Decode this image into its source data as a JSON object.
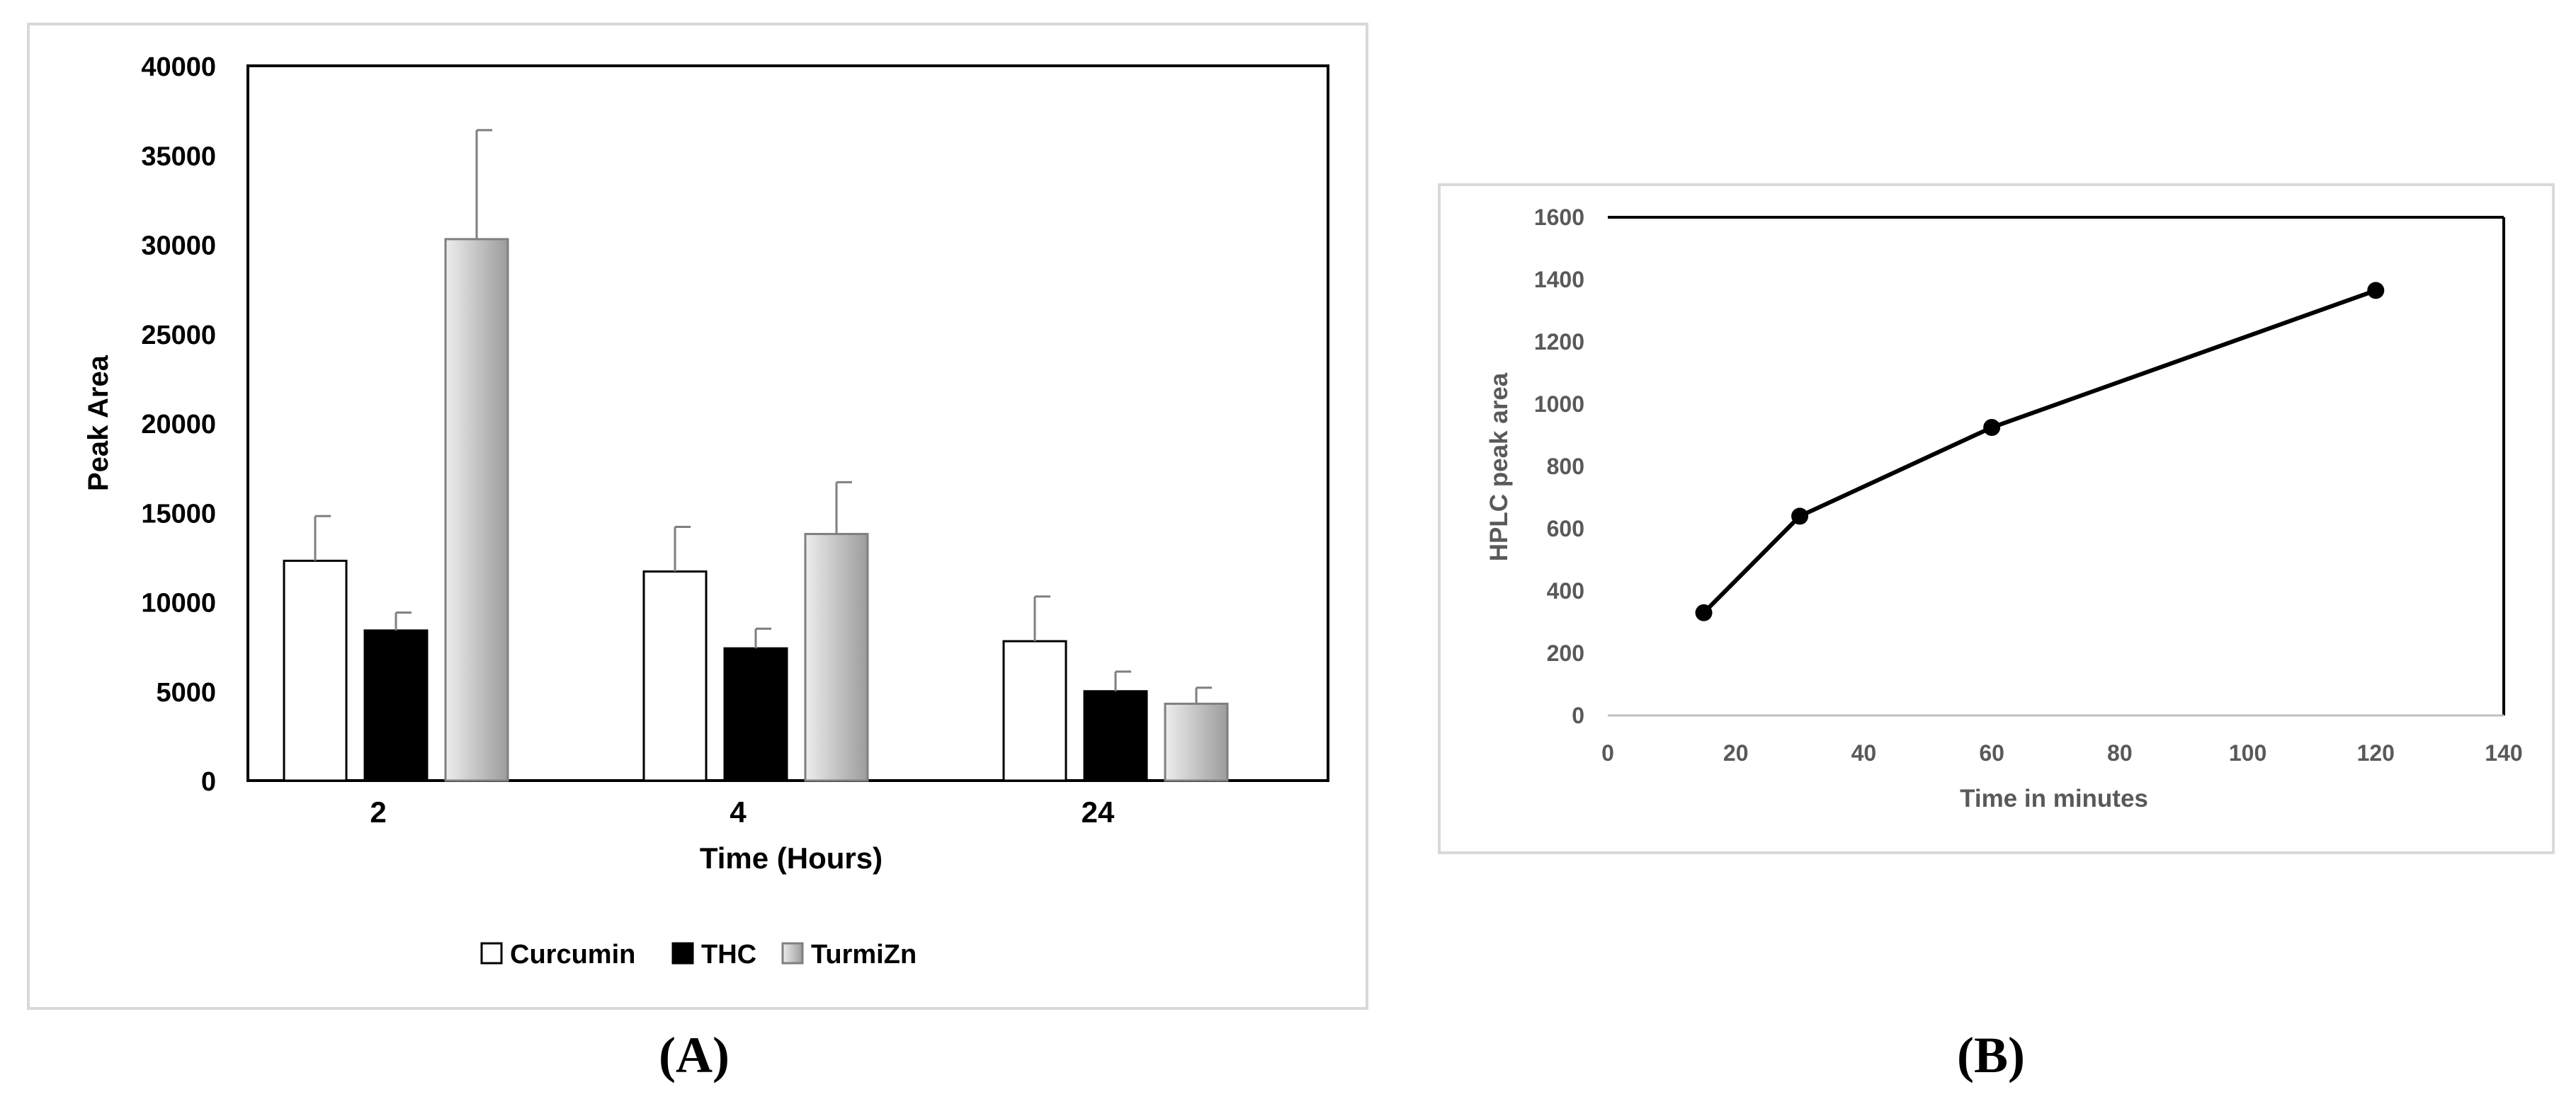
{
  "colors": {
    "background": "#ffffff",
    "panel_border": "#d9d9d9",
    "axis": "#000000",
    "bar_curcumin": "#ffffff",
    "bar_thc": "#000000",
    "bar_turmizn": "#b8b8b8",
    "error_bar": "#7f7f7f",
    "text_a": "#000000",
    "text_b": "#595959"
  },
  "captions": {
    "a": "(A)",
    "b": "(B)"
  },
  "chart_data": [
    {
      "panel": "A",
      "type": "bar",
      "title": "",
      "xlabel": "Time (Hours)",
      "ylabel": "Peak Area",
      "categories": [
        "2",
        "4",
        "24"
      ],
      "ylim": [
        0,
        40000
      ],
      "yticks": [
        0,
        5000,
        10000,
        15000,
        20000,
        25000,
        30000,
        35000,
        40000
      ],
      "ytick_labels": [
        "0",
        "5000",
        "10000",
        "15000",
        "20000",
        "25000",
        "30000",
        "35000",
        "40000"
      ],
      "legend_position": "bottom",
      "series": [
        {
          "name": "Curcumin",
          "values": [
            12300,
            11700,
            7800
          ],
          "errors": [
            2500,
            2500,
            2500
          ]
        },
        {
          "name": "THC",
          "values": [
            8400,
            7400,
            5000
          ],
          "errors": [
            1000,
            1100,
            1100
          ]
        },
        {
          "name": "TurmiZn",
          "values": [
            30300,
            13800,
            4300
          ],
          "errors": [
            6100,
            2900,
            900
          ]
        }
      ]
    },
    {
      "panel": "B",
      "type": "line",
      "title": "",
      "xlabel": "Time in minutes",
      "ylabel": "HPLC peak area",
      "x": [
        15,
        30,
        60,
        120
      ],
      "y": [
        330,
        640,
        925,
        1365
      ],
      "xlim": [
        0,
        140
      ],
      "ylim": [
        0,
        1600
      ],
      "xticks": [
        0,
        20,
        40,
        60,
        80,
        100,
        120,
        140
      ],
      "xtick_labels": [
        "0",
        "20",
        "40",
        "60",
        "80",
        "100",
        "120",
        "140"
      ],
      "yticks": [
        0,
        200,
        400,
        600,
        800,
        1000,
        1200,
        1400,
        1600
      ],
      "ytick_labels": [
        "0",
        "200",
        "400",
        "600",
        "800",
        "1000",
        "1200",
        "1400",
        "1600"
      ],
      "markers": true
    }
  ]
}
